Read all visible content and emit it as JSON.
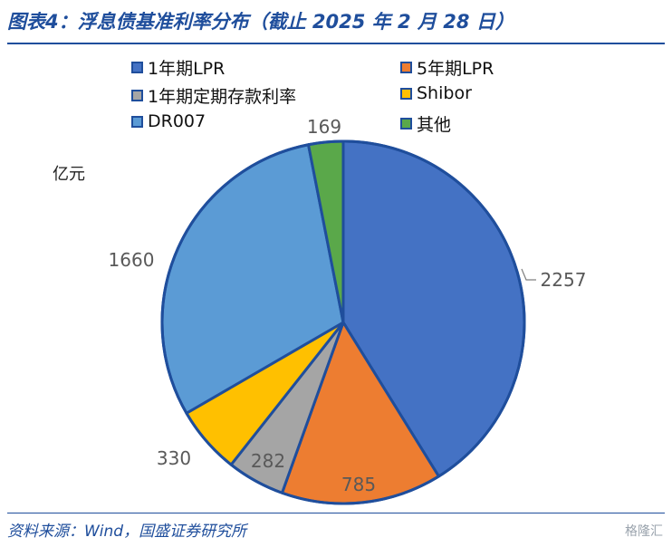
{
  "title": "图表4：浮息债基准利率分布（截止 2025 年 2 月 28 日）",
  "source": "资料来源：Wind，国盛证券研究所",
  "watermark": "格隆汇",
  "unit": "亿元",
  "chart_data": {
    "type": "pie",
    "slices": [
      {
        "label": "1年期LPR",
        "value": 2257,
        "color": "#4472c4"
      },
      {
        "label": "5年期LPR",
        "value": 785,
        "color": "#ed7d31"
      },
      {
        "label": "1年期定期存款利率",
        "value": 282,
        "color": "#a5a5a5"
      },
      {
        "label": "Shibor",
        "value": 330,
        "color": "#ffc000"
      },
      {
        "label": "DR007",
        "value": 1660,
        "color": "#5b9bd5"
      },
      {
        "label": "其他",
        "value": 169,
        "color": "#5aa84a"
      }
    ],
    "legend_placement": "top"
  }
}
